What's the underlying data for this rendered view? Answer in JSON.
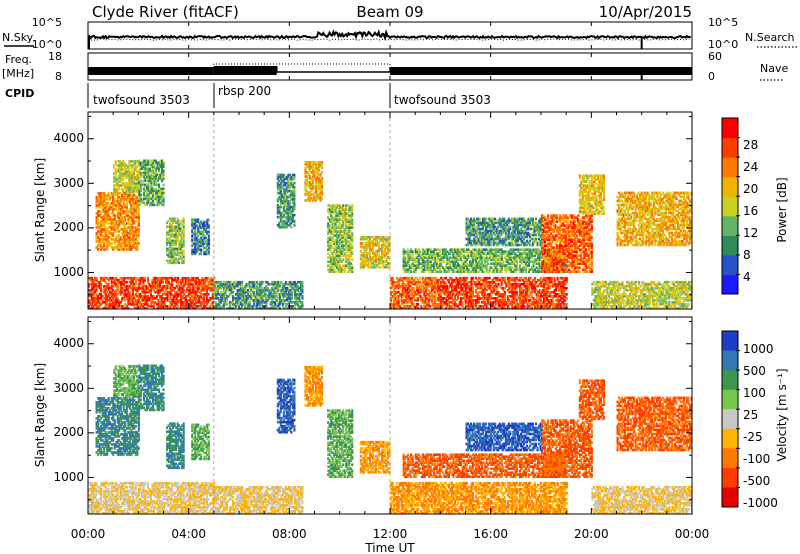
{
  "header": {
    "station": "Clyde River (fitACF)",
    "beam": "Beam 09",
    "date": "10/Apr/2015"
  },
  "side_labels": {
    "nsky": "N.Sky",
    "nsearch": "N.Search",
    "freq_line1": "Freq.",
    "freq_line2": "[MHz]",
    "nave": "Nave",
    "cpid": "CPID"
  },
  "noise_panel": {
    "left_ticks": [
      "10^5",
      "10^0"
    ],
    "right_ticks": [
      "10^5",
      "10^0"
    ]
  },
  "freq_panel": {
    "left_ticks": [
      "18",
      "8"
    ],
    "right_ticks": [
      "60",
      "0"
    ]
  },
  "cpid_segments": [
    {
      "label": "twofsound 3503",
      "start_hour": 0,
      "end_hour": 5
    },
    {
      "label": "rbsp 200",
      "start_hour": 5,
      "end_hour": 12
    },
    {
      "label": "twofsound 3503",
      "start_hour": 12,
      "end_hour": 24
    }
  ],
  "x_axis": {
    "label": "Time UT",
    "ticks": [
      "00:00",
      "04:00",
      "08:00",
      "12:00",
      "16:00",
      "20:00",
      "00:00"
    ],
    "range_hours": [
      0,
      24
    ]
  },
  "y_axis": {
    "label": "Slant Range [km]",
    "ticks": [
      "1000",
      "2000",
      "3000",
      "4000"
    ],
    "range_km": [
      180,
      4600
    ]
  },
  "power_colorbar": {
    "title": "Power [dB]",
    "ticks": [
      "4",
      "8",
      "12",
      "16",
      "20",
      "24",
      "28"
    ],
    "colors": [
      "#1a1aff",
      "#2850c8",
      "#2e8c5a",
      "#64b464",
      "#c8d220",
      "#f0b400",
      "#ff7800",
      "#ff3c00",
      "#ff0000"
    ]
  },
  "velocity_colorbar": {
    "title": "Velocity [m s⁻¹]",
    "ticks": [
      "1000",
      "500",
      "100",
      "25",
      "-25",
      "-100",
      "-500",
      "-1000"
    ],
    "colors": [
      "#1e3cc8",
      "#3278b4",
      "#3c9650",
      "#78c850",
      "#c8c8c8",
      "#ffb400",
      "#ff7800",
      "#ff3c00",
      "#e60000"
    ]
  },
  "chart_data": {
    "type": "heatmap",
    "time_hours": [
      0,
      24
    ],
    "range_gates_km": [
      180,
      4600
    ],
    "power_dB_range": [
      0,
      32
    ],
    "velocity_ms_range": [
      -1500,
      1500
    ],
    "regions": [
      {
        "t": [
          0.0,
          5.0
        ],
        "r": [
          180,
          900
        ],
        "power_dB": 27,
        "velocity": -25
      },
      {
        "t": [
          0.3,
          2.0
        ],
        "r": [
          1500,
          2800
        ],
        "power_dB": 22,
        "velocity": 500
      },
      {
        "t": [
          1.0,
          2.0
        ],
        "r": [
          2800,
          3500
        ],
        "power_dB": 16,
        "velocity": 100
      },
      {
        "t": [
          2.0,
          3.0
        ],
        "r": [
          2500,
          3500
        ],
        "power_dB": 12,
        "velocity": 500
      },
      {
        "t": [
          3.1,
          3.8
        ],
        "r": [
          1200,
          2200
        ],
        "power_dB": 14,
        "velocity": 500
      },
      {
        "t": [
          4.1,
          4.8
        ],
        "r": [
          1400,
          2200
        ],
        "power_dB": 8,
        "velocity": 100
      },
      {
        "t": [
          5.0,
          8.5
        ],
        "r": [
          180,
          800
        ],
        "power_dB": 10,
        "velocity": -25
      },
      {
        "t": [
          7.5,
          8.2
        ],
        "r": [
          2000,
          3200
        ],
        "power_dB": 10,
        "velocity": 1000
      },
      {
        "t": [
          8.6,
          9.3
        ],
        "r": [
          2600,
          3500
        ],
        "power_dB": 20,
        "velocity": -100
      },
      {
        "t": [
          9.5,
          10.5
        ],
        "r": [
          1000,
          2500
        ],
        "power_dB": 14,
        "velocity": 100
      },
      {
        "t": [
          10.8,
          12.0
        ],
        "r": [
          1100,
          1800
        ],
        "power_dB": 18,
        "velocity": -100
      },
      {
        "t": [
          12.0,
          14.0
        ],
        "r": [
          180,
          900
        ],
        "power_dB": 25,
        "velocity": -100
      },
      {
        "t": [
          14.0,
          19.0
        ],
        "r": [
          180,
          900
        ],
        "power_dB": 27,
        "velocity": -100
      },
      {
        "t": [
          12.5,
          19.0
        ],
        "r": [
          1000,
          1500
        ],
        "power_dB": 12,
        "velocity": -500
      },
      {
        "t": [
          15.0,
          18.0
        ],
        "r": [
          1600,
          2200
        ],
        "power_dB": 10,
        "velocity": 1000
      },
      {
        "t": [
          18.0,
          20.0
        ],
        "r": [
          1000,
          2300
        ],
        "power_dB": 25,
        "velocity": -500
      },
      {
        "t": [
          19.5,
          20.5
        ],
        "r": [
          2300,
          3200
        ],
        "power_dB": 18,
        "velocity": -500
      },
      {
        "t": [
          21.0,
          24.0
        ],
        "r": [
          1600,
          2800
        ],
        "power_dB": 20,
        "velocity": -500
      },
      {
        "t": [
          20.0,
          24.0
        ],
        "r": [
          180,
          800
        ],
        "power_dB": 16,
        "velocity": -25
      }
    ]
  }
}
